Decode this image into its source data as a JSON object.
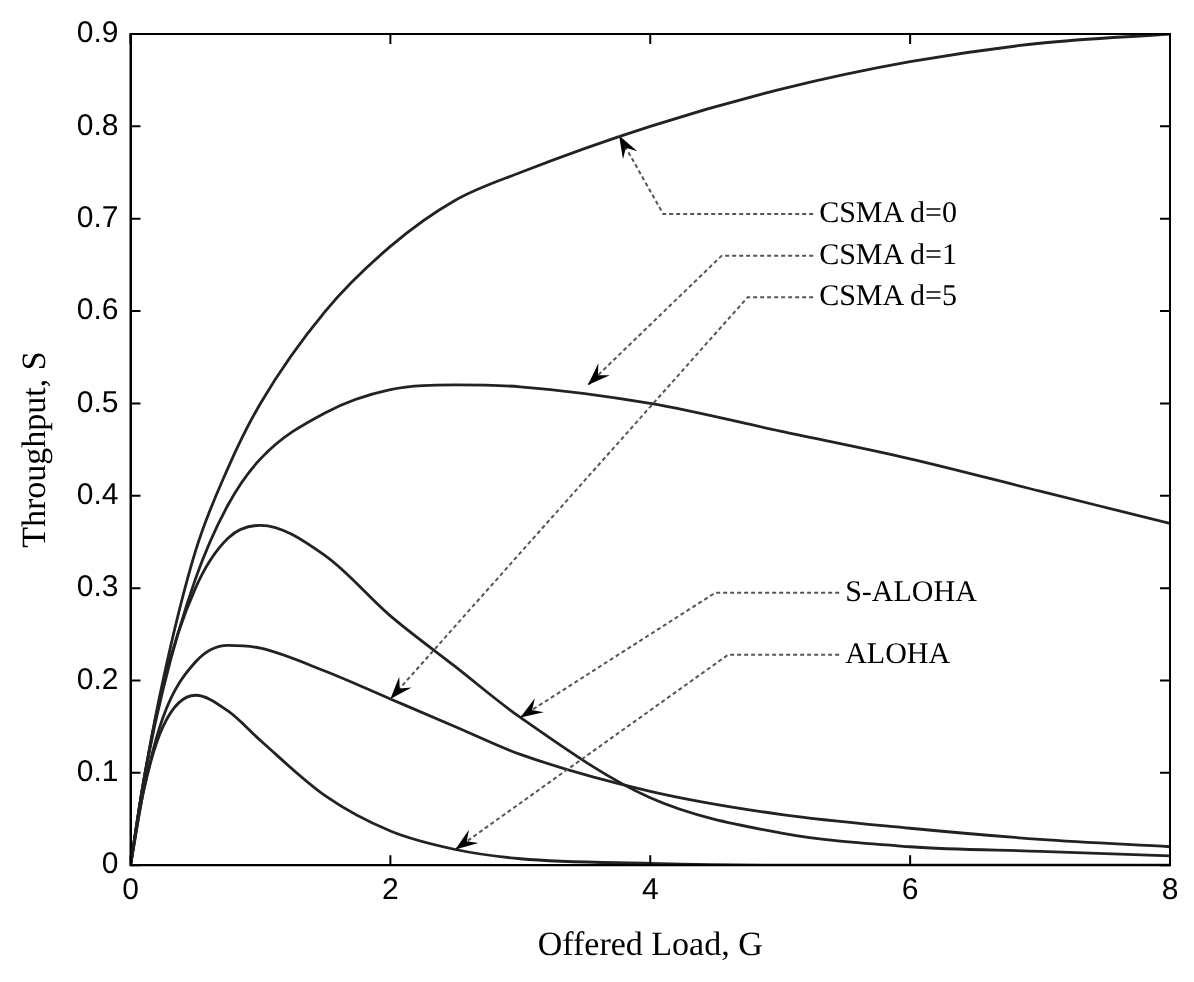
{
  "chart_data": {
    "type": "line",
    "xlabel": "Offered Load, G",
    "ylabel": "Throughput, S",
    "xlim": [
      0,
      8
    ],
    "xticks": [
      0,
      2,
      4,
      6,
      8
    ],
    "ylim": [
      0,
      0.9
    ],
    "yticks": [
      0,
      0.1,
      0.2,
      0.3,
      0.4,
      0.5,
      0.6,
      0.7,
      0.8,
      0.9
    ],
    "grid": false,
    "legend": false,
    "marker": "none",
    "line_style": "solid",
    "series": [
      {
        "color": "#222222",
        "x": [
          0,
          0.1,
          0.25,
          0.5,
          0.75,
          1,
          1.5,
          2,
          2.5,
          3,
          4,
          5,
          6,
          7,
          8
        ],
        "values": [
          0,
          0.09,
          0.2,
          0.34,
          0.43,
          0.5,
          0.6,
          0.67,
          0.72,
          0.75,
          0.8,
          0.84,
          0.87,
          0.89,
          0.9
        ]
      },
      {
        "color": "#222222",
        "x": [
          0,
          0.1,
          0.25,
          0.5,
          0.75,
          1,
          1.5,
          2,
          2.5,
          3,
          4,
          5,
          6,
          7,
          8
        ],
        "values": [
          0,
          0.09,
          0.19,
          0.31,
          0.39,
          0.44,
          0.49,
          0.515,
          0.52,
          0.518,
          0.5,
          0.47,
          0.44,
          0.405,
          0.37
        ]
      },
      {
        "color": "#222222",
        "x": [
          0,
          0.1,
          0.25,
          0.5,
          0.75,
          1,
          1.5,
          2,
          2.5,
          3,
          4,
          5,
          6,
          7,
          8
        ],
        "values": [
          0,
          0.09,
          0.195,
          0.3,
          0.354,
          0.368,
          0.335,
          0.27,
          0.215,
          0.16,
          0.073,
          0.035,
          0.02,
          0.015,
          0.01
        ]
      },
      {
        "color": "#222222",
        "x": [
          0,
          0.1,
          0.25,
          0.5,
          0.75,
          1,
          1.5,
          2,
          2.5,
          3,
          4,
          5,
          6,
          7,
          8
        ],
        "values": [
          0,
          0.08,
          0.16,
          0.22,
          0.238,
          0.235,
          0.21,
          0.18,
          0.15,
          0.12,
          0.08,
          0.055,
          0.04,
          0.028,
          0.02
        ]
      },
      {
        "color": "#222222",
        "x": [
          0,
          0.1,
          0.25,
          0.5,
          0.75,
          1,
          1.5,
          2,
          2.5,
          3,
          4,
          5,
          6,
          7,
          8
        ],
        "values": [
          0,
          0.08,
          0.15,
          0.184,
          0.167,
          0.135,
          0.075,
          0.037,
          0.017,
          0.007,
          0.002,
          0,
          0,
          0,
          0
        ]
      }
    ],
    "annotations": [
      {
        "text": "CSMA d=0",
        "x": 3.76,
        "y": 0.79
      },
      {
        "text": "CSMA d=1",
        "x": 3.52,
        "y": 0.52
      },
      {
        "text": "CSMA d=5",
        "x": 2,
        "y": 0.18
      },
      {
        "text": "S-ALOHA",
        "x": 3,
        "y": 0.16
      },
      {
        "text": "ALOHA",
        "x": 2.5,
        "y": 0.017
      }
    ]
  }
}
